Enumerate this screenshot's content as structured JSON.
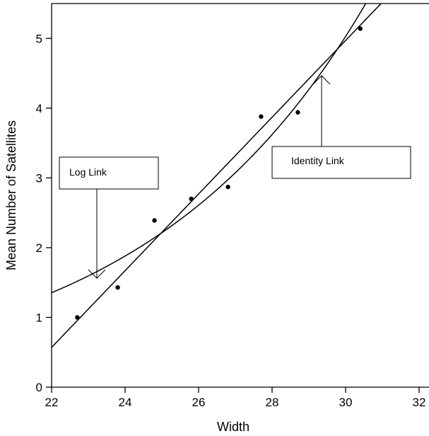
{
  "chart_data": {
    "type": "scatter",
    "xlabel": "Width",
    "ylabel": "Mean Number of Satellites",
    "xlim": [
      22,
      32
    ],
    "ylim": [
      0,
      5.5
    ],
    "xticks": [
      "22",
      "24",
      "26",
      "28",
      "30",
      "32"
    ],
    "yticks": [
      "0",
      "1",
      "2",
      "3",
      "4",
      "5"
    ],
    "points": [
      {
        "x": 22.7,
        "y": 1.0
      },
      {
        "x": 23.8,
        "y": 1.43
      },
      {
        "x": 24.8,
        "y": 2.39
      },
      {
        "x": 25.8,
        "y": 2.7
      },
      {
        "x": 26.8,
        "y": 2.87
      },
      {
        "x": 27.7,
        "y": 3.88
      },
      {
        "x": 28.7,
        "y": 3.94
      },
      {
        "x": 30.4,
        "y": 5.14
      }
    ],
    "curves": {
      "log_link": {
        "intercept": -3.305,
        "slope": 0.164
      },
      "identity_link": {
        "intercept": -11.53,
        "slope": 0.55
      }
    },
    "annotations": [
      {
        "text": "Log Link",
        "arrow_x": 23.2,
        "arrow_y": 1.55
      },
      {
        "text": "Identity Link",
        "arrow_x": 29.3,
        "arrow_y": 4.45
      }
    ]
  }
}
